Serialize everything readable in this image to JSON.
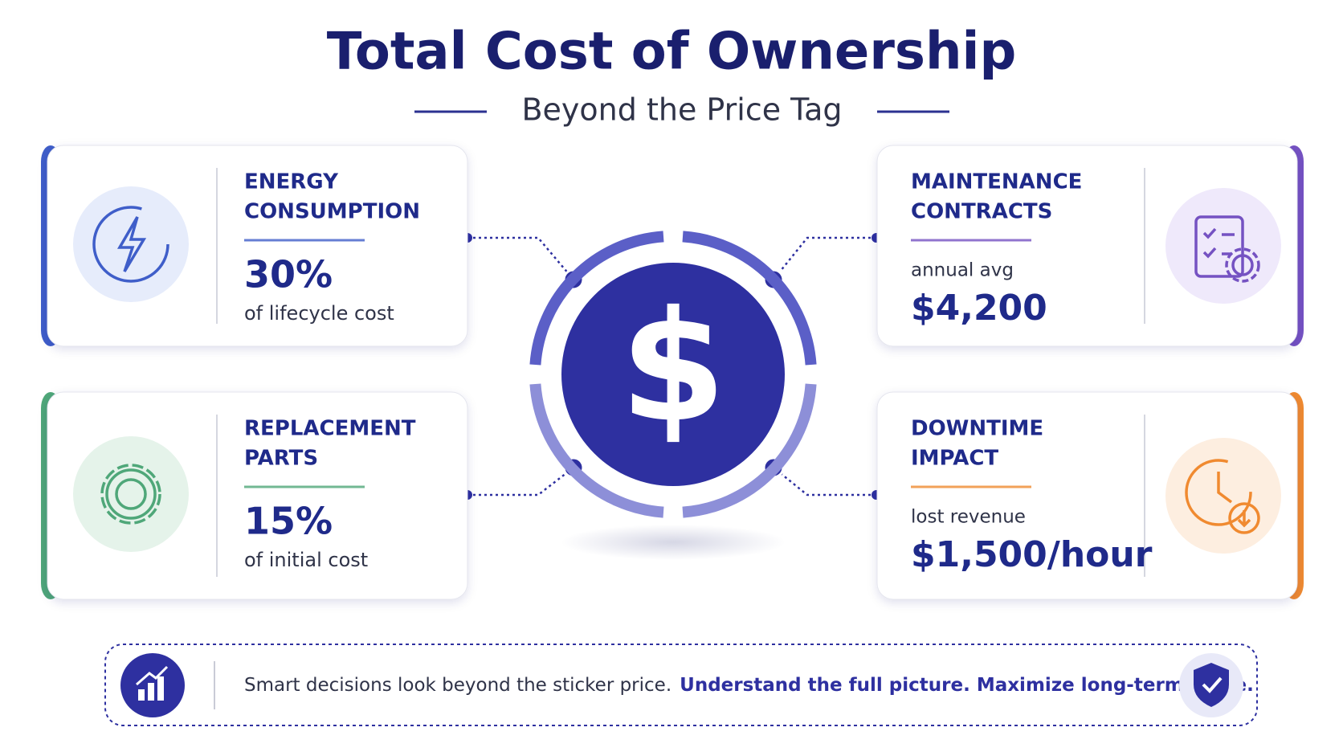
{
  "header": {
    "title": "Total Cost of Ownership",
    "subtitle": "Beyond the Price Tag"
  },
  "center_symbol": "$",
  "cards": [
    {
      "title_lines": [
        "ENERGY",
        "CONSUMPTION"
      ],
      "value": "30%",
      "note": "of lifecycle cost"
    },
    {
      "title_lines": [
        "MAINTENANCE",
        "CONTRACTS"
      ],
      "label": "annual avg",
      "value": "$4,200"
    },
    {
      "title_lines": [
        "REPLACEMENT",
        "PARTS"
      ],
      "value": "15%",
      "note": "of initial cost"
    },
    {
      "title_lines": [
        "DOWNTIME",
        "IMPACT"
      ],
      "label": "lost revenue",
      "value": "$1,500/hour"
    }
  ],
  "footer": {
    "text": "Smart decisions look beyond the sticker price.",
    "emphasis": "Understand the full picture. Maximize long-term value."
  }
}
